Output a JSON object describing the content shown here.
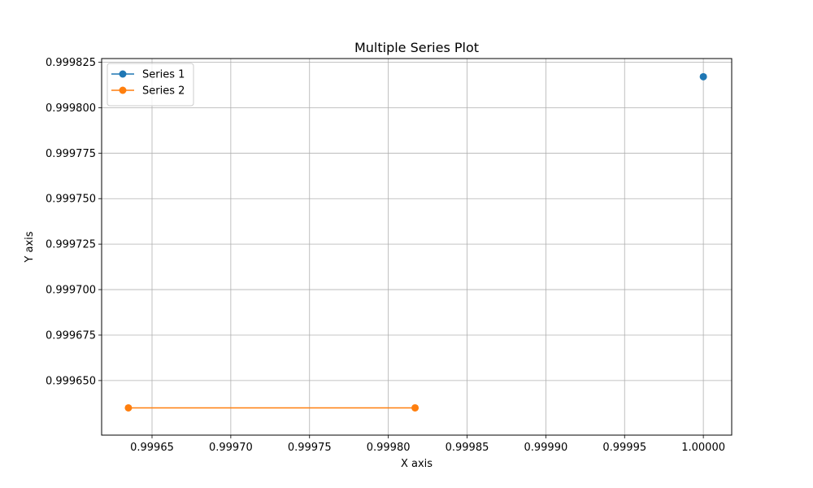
{
  "chart_data": {
    "type": "line",
    "title": "Multiple Series Plot",
    "xlabel": "X axis",
    "ylabel": "Y axis",
    "xlim": [
      0.999618,
      1.000018
    ],
    "ylim": [
      0.99962,
      0.999827
    ],
    "x_ticks": [
      0.99965,
      0.9997,
      0.99975,
      0.9998,
      0.99985,
      0.9999,
      0.99995,
      1.0
    ],
    "x_tick_labels": [
      "0.99965",
      "0.99970",
      "0.99975",
      "0.99980",
      "0.99985",
      "0.99990",
      "0.99995",
      "1.00000"
    ],
    "y_ticks": [
      0.99965,
      0.999675,
      0.9997,
      0.999725,
      0.99975,
      0.999775,
      0.9998,
      0.999825
    ],
    "y_tick_labels": [
      "0.999650",
      "0.999675",
      "0.999700",
      "0.999725",
      "0.999750",
      "0.999775",
      "0.999800",
      "0.999825"
    ],
    "grid": true,
    "legend_position": "top-left",
    "series": [
      {
        "name": "Series 1",
        "color": "#1f77b4",
        "x": [
          1.0
        ],
        "y": [
          0.999817
        ]
      },
      {
        "name": "Series 2",
        "color": "#ff7f0e",
        "x": [
          0.999635,
          0.999817
        ],
        "y": [
          0.999635,
          0.999635
        ]
      }
    ]
  }
}
